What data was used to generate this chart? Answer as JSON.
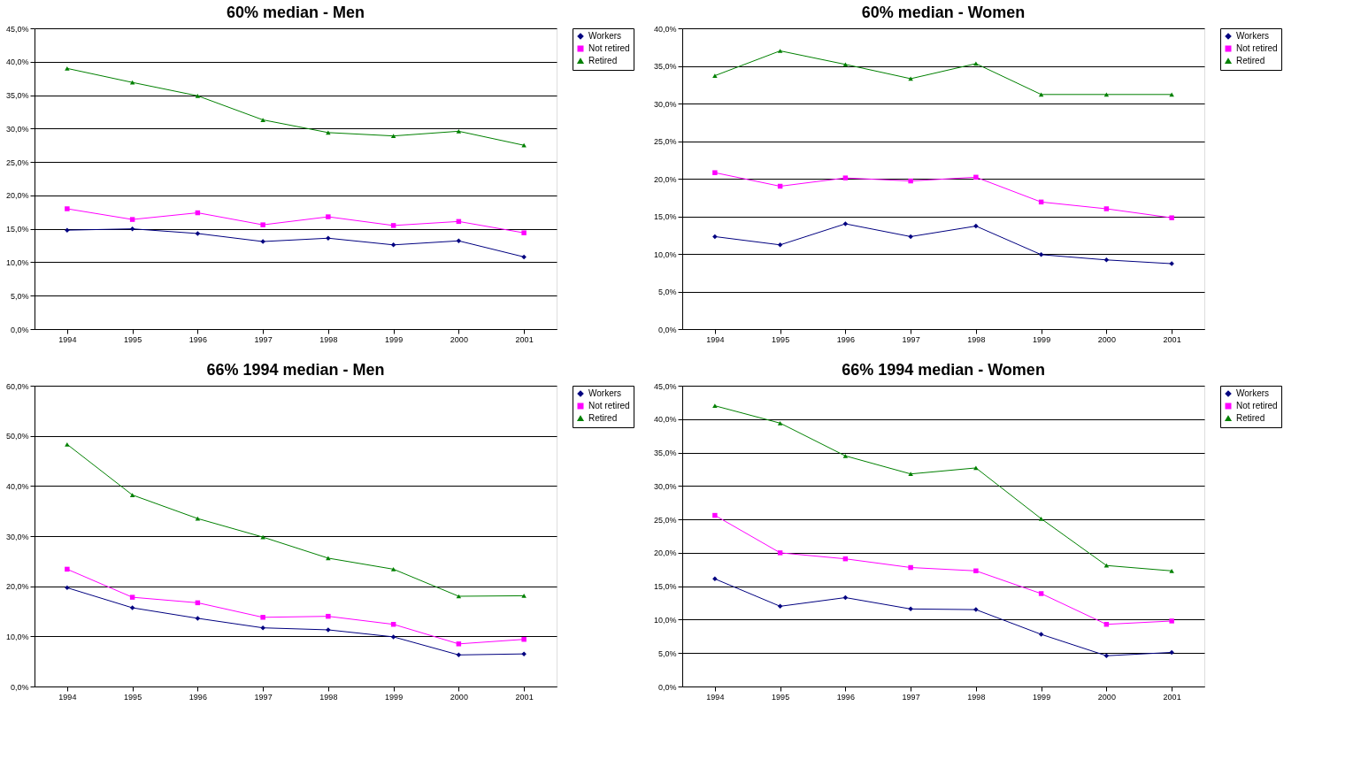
{
  "chart_data": [
    {
      "type": "line",
      "title": "60% median - Men",
      "categories": [
        "1994",
        "1995",
        "1996",
        "1997",
        "1998",
        "1999",
        "2000",
        "2001"
      ],
      "ylim": [
        0,
        45
      ],
      "yticks": [
        {
          "value": 0,
          "label": "0,0%"
        },
        {
          "value": 5,
          "label": "5,0%"
        },
        {
          "value": 10,
          "label": "10,0%"
        },
        {
          "value": 15,
          "label": "15,0%"
        },
        {
          "value": 20,
          "label": "20,0%"
        },
        {
          "value": 25,
          "label": "25,0%"
        },
        {
          "value": 30,
          "label": "30,0%"
        },
        {
          "value": 35,
          "label": "35,0%"
        },
        {
          "value": 40,
          "label": "40,0%"
        },
        {
          "value": 45,
          "label": "45,0%"
        }
      ],
      "grid": "y",
      "legend": "right",
      "series": [
        {
          "name": "Workers",
          "color": "#000080",
          "marker": "diamond",
          "values": [
            14.8,
            15.0,
            14.3,
            13.1,
            13.6,
            12.6,
            13.2,
            10.8
          ]
        },
        {
          "name": "Not retired",
          "color": "#ff00ff",
          "marker": "square",
          "values": [
            18.0,
            16.4,
            17.4,
            15.6,
            16.8,
            15.5,
            16.1,
            14.4
          ]
        },
        {
          "name": "Retired",
          "color": "#008000",
          "marker": "triangle",
          "values": [
            39.0,
            36.9,
            34.9,
            31.3,
            29.4,
            28.9,
            29.6,
            27.5
          ]
        }
      ]
    },
    {
      "type": "line",
      "title": "60% median - Women",
      "categories": [
        "1994",
        "1995",
        "1996",
        "1997",
        "1998",
        "1999",
        "2000",
        "2001"
      ],
      "ylim": [
        0,
        40
      ],
      "yticks": [
        {
          "value": 0,
          "label": "0,0%"
        },
        {
          "value": 5,
          "label": "5,0%"
        },
        {
          "value": 10,
          "label": "10,0%"
        },
        {
          "value": 15,
          "label": "15,0%"
        },
        {
          "value": 20,
          "label": "20,0%"
        },
        {
          "value": 25,
          "label": "25,0%"
        },
        {
          "value": 30,
          "label": "30,0%"
        },
        {
          "value": 35,
          "label": "35,0%"
        },
        {
          "value": 40,
          "label": "40,0%"
        }
      ],
      "grid": "y",
      "legend": "right",
      "series": [
        {
          "name": "Workers",
          "color": "#000080",
          "marker": "diamond",
          "values": [
            12.3,
            11.2,
            14.0,
            12.3,
            13.7,
            9.9,
            9.2,
            8.7
          ]
        },
        {
          "name": "Not retired",
          "color": "#ff00ff",
          "marker": "square",
          "values": [
            20.8,
            19.0,
            20.1,
            19.7,
            20.2,
            16.9,
            16.0,
            14.8
          ]
        },
        {
          "name": "Retired",
          "color": "#008000",
          "marker": "triangle",
          "values": [
            33.7,
            37.0,
            35.2,
            33.3,
            35.3,
            31.2,
            31.2,
            31.2
          ]
        }
      ]
    },
    {
      "type": "line",
      "title": "66% 1994 median - Men",
      "categories": [
        "1994",
        "1995",
        "1996",
        "1997",
        "1998",
        "1999",
        "2000",
        "2001"
      ],
      "ylim": [
        0,
        60
      ],
      "yticks": [
        {
          "value": 0,
          "label": "0,0%"
        },
        {
          "value": 10,
          "label": "10,0%"
        },
        {
          "value": 20,
          "label": "20,0%"
        },
        {
          "value": 30,
          "label": "30,0%"
        },
        {
          "value": 40,
          "label": "40,0%"
        },
        {
          "value": 50,
          "label": "50,0%"
        },
        {
          "value": 60,
          "label": "60,0%"
        }
      ],
      "grid": "y",
      "legend": "right",
      "series": [
        {
          "name": "Workers",
          "color": "#000080",
          "marker": "diamond",
          "values": [
            19.7,
            15.7,
            13.6,
            11.7,
            11.3,
            9.9,
            6.3,
            6.5
          ]
        },
        {
          "name": "Not retired",
          "color": "#ff00ff",
          "marker": "square",
          "values": [
            23.4,
            17.8,
            16.7,
            13.8,
            14.0,
            12.4,
            8.5,
            9.4
          ]
        },
        {
          "name": "Retired",
          "color": "#008000",
          "marker": "triangle",
          "values": [
            48.3,
            38.2,
            33.5,
            29.8,
            25.6,
            23.4,
            18.0,
            18.1
          ]
        }
      ]
    },
    {
      "type": "line",
      "title": "66% 1994  median - Women",
      "categories": [
        "1994",
        "1995",
        "1996",
        "1997",
        "1998",
        "1999",
        "2000",
        "2001"
      ],
      "ylim": [
        0,
        45
      ],
      "yticks": [
        {
          "value": 0,
          "label": "0,0%"
        },
        {
          "value": 5,
          "label": "5,0%"
        },
        {
          "value": 10,
          "label": "10,0%"
        },
        {
          "value": 15,
          "label": "15,0%"
        },
        {
          "value": 20,
          "label": "20,0%"
        },
        {
          "value": 25,
          "label": "25,0%"
        },
        {
          "value": 30,
          "label": "30,0%"
        },
        {
          "value": 35,
          "label": "35,0%"
        },
        {
          "value": 40,
          "label": "40,0%"
        },
        {
          "value": 45,
          "label": "45,0%"
        }
      ],
      "grid": "y",
      "legend": "right",
      "series": [
        {
          "name": "Workers",
          "color": "#000080",
          "marker": "diamond",
          "values": [
            16.1,
            12.0,
            13.3,
            11.6,
            11.5,
            7.8,
            4.6,
            5.1
          ]
        },
        {
          "name": "Not retired",
          "color": "#ff00ff",
          "marker": "square",
          "values": [
            25.6,
            20.0,
            19.1,
            17.8,
            17.3,
            13.9,
            9.3,
            9.8
          ]
        },
        {
          "name": "Retired",
          "color": "#008000",
          "marker": "triangle",
          "values": [
            42.0,
            39.4,
            34.5,
            31.8,
            32.7,
            25.1,
            18.1,
            17.3
          ]
        }
      ]
    }
  ]
}
